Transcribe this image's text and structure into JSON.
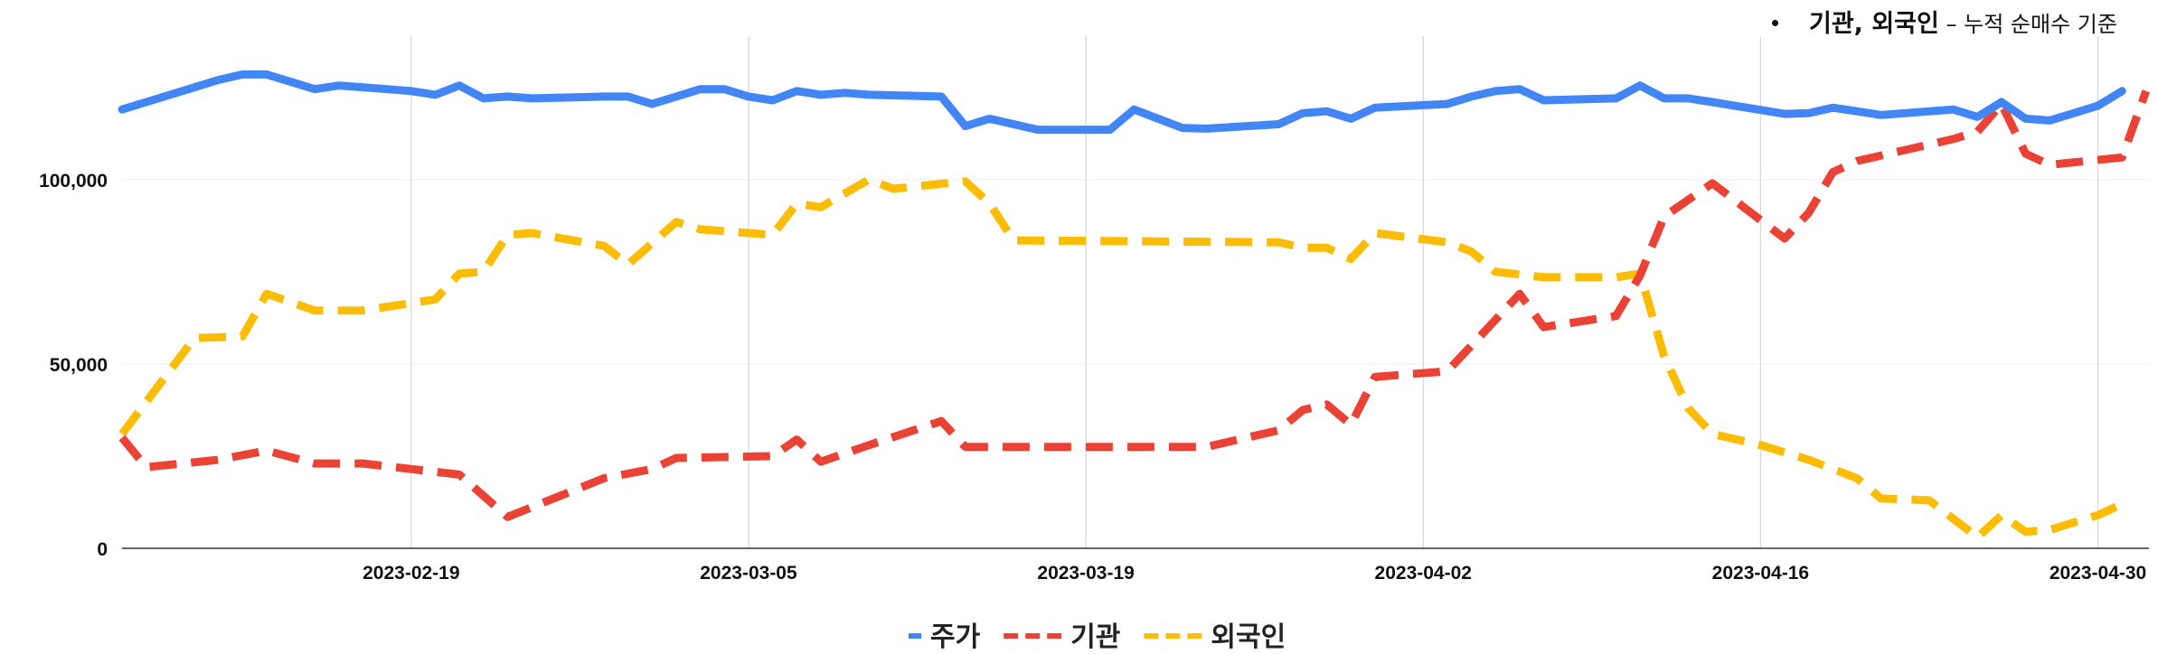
{
  "note": {
    "main": "기관, 외국인",
    "sub": " – 누적 순매수 기준"
  },
  "chart_data": {
    "type": "line",
    "y_ticks": [
      "0",
      "50,000",
      "100,000"
    ],
    "ylim": [
      0,
      125000
    ],
    "x_ticks": [
      "2023-02-19",
      "2023-03-05",
      "2023-03-19",
      "2023-04-02",
      "2023-04-16",
      "2023-04-30"
    ],
    "x_start": "2023-02-07",
    "x_end": "2023-05-01",
    "grid": "vertical at x ticks",
    "legend_position": "bottom",
    "series": [
      {
        "name": "주가",
        "color": "#4285F4",
        "dash": "solid",
        "points": [
          [
            "2023-02-07",
            119000
          ],
          [
            "2023-02-08",
            121000
          ],
          [
            "2023-02-10",
            125000
          ],
          [
            "2023-02-11",
            127000
          ],
          [
            "2023-02-12",
            128500
          ],
          [
            "2023-02-13",
            128500
          ],
          [
            "2023-02-14",
            126500
          ],
          [
            "2023-02-15",
            124500
          ],
          [
            "2023-02-16",
            125500
          ],
          [
            "2023-02-18",
            124500
          ],
          [
            "2023-02-19",
            124000
          ],
          [
            "2023-02-20",
            123000
          ],
          [
            "2023-02-21",
            125500
          ],
          [
            "2023-02-22",
            122000
          ],
          [
            "2023-02-23",
            122500
          ],
          [
            "2023-02-24",
            122000
          ],
          [
            "2023-02-27",
            122500
          ],
          [
            "2023-02-28",
            122500
          ],
          [
            "2023-03-01",
            120500
          ],
          [
            "2023-03-03",
            124500
          ],
          [
            "2023-03-04",
            124500
          ],
          [
            "2023-03-05",
            122500
          ],
          [
            "2023-03-06",
            121500
          ],
          [
            "2023-03-07",
            124000
          ],
          [
            "2023-03-08",
            123000
          ],
          [
            "2023-03-09",
            123500
          ],
          [
            "2023-03-10",
            123000
          ],
          [
            "2023-03-13",
            122500
          ],
          [
            "2023-03-14",
            114500
          ],
          [
            "2023-03-15",
            116500
          ],
          [
            "2023-03-16",
            115000
          ],
          [
            "2023-03-17",
            113500
          ],
          [
            "2023-03-20",
            113500
          ],
          [
            "2023-03-21",
            119000
          ],
          [
            "2023-03-23",
            114000
          ],
          [
            "2023-03-24",
            113800
          ],
          [
            "2023-03-27",
            115000
          ],
          [
            "2023-03-28",
            118000
          ],
          [
            "2023-03-29",
            118500
          ],
          [
            "2023-03-30",
            116500
          ],
          [
            "2023-03-31",
            119500
          ],
          [
            "2023-04-03",
            120500
          ],
          [
            "2023-04-04",
            122500
          ],
          [
            "2023-04-05",
            124000
          ],
          [
            "2023-04-06",
            124500
          ],
          [
            "2023-04-07",
            121500
          ],
          [
            "2023-04-10",
            122000
          ],
          [
            "2023-04-11",
            125500
          ],
          [
            "2023-04-12",
            122000
          ],
          [
            "2023-04-13",
            122000
          ],
          [
            "2023-04-14",
            121000
          ],
          [
            "2023-04-17",
            117800
          ],
          [
            "2023-04-18",
            118000
          ],
          [
            "2023-04-19",
            119500
          ],
          [
            "2023-04-20",
            118500
          ],
          [
            "2023-04-21",
            117500
          ],
          [
            "2023-04-24",
            119000
          ],
          [
            "2023-04-25",
            117000
          ],
          [
            "2023-04-26",
            121000
          ],
          [
            "2023-04-27",
            116500
          ],
          [
            "2023-04-28",
            116000
          ],
          [
            "2023-04-30",
            120000
          ],
          [
            "2023-05-01",
            124000
          ]
        ]
      },
      {
        "name": "기관",
        "color": "#EA4335",
        "dash": "dashed",
        "points": [
          [
            "2023-02-07",
            30000
          ],
          [
            "2023-02-08",
            22000
          ],
          [
            "2023-02-11",
            24000
          ],
          [
            "2023-02-13",
            26500
          ],
          [
            "2023-02-15",
            23000
          ],
          [
            "2023-02-17",
            23000
          ],
          [
            "2023-02-21",
            20000
          ],
          [
            "2023-02-23",
            8500
          ],
          [
            "2023-02-27",
            19000
          ],
          [
            "2023-03-01",
            21500
          ],
          [
            "2023-03-02",
            24500
          ],
          [
            "2023-03-06",
            25000
          ],
          [
            "2023-03-07",
            29500
          ],
          [
            "2023-03-08",
            23500
          ],
          [
            "2023-03-10",
            28000
          ],
          [
            "2023-03-13",
            34500
          ],
          [
            "2023-03-14",
            27500
          ],
          [
            "2023-03-20",
            27500
          ],
          [
            "2023-03-24",
            27500
          ],
          [
            "2023-03-27",
            32000
          ],
          [
            "2023-03-28",
            37500
          ],
          [
            "2023-03-29",
            39000
          ],
          [
            "2023-03-30",
            33500
          ],
          [
            "2023-03-31",
            46500
          ],
          [
            "2023-04-03",
            48000
          ],
          [
            "2023-04-04",
            55000
          ],
          [
            "2023-04-06",
            69000
          ],
          [
            "2023-04-07",
            60000
          ],
          [
            "2023-04-10",
            63000
          ],
          [
            "2023-04-11",
            74000
          ],
          [
            "2023-04-12",
            90000
          ],
          [
            "2023-04-14",
            99000
          ],
          [
            "2023-04-17",
            84000
          ],
          [
            "2023-04-18",
            91000
          ],
          [
            "2023-04-19",
            102000
          ],
          [
            "2023-04-20",
            105000
          ],
          [
            "2023-04-24",
            111000
          ],
          [
            "2023-04-25",
            113000
          ],
          [
            "2023-04-26",
            120500
          ],
          [
            "2023-04-27",
            107000
          ],
          [
            "2023-04-28",
            104000
          ],
          [
            "2023-05-01",
            106000
          ],
          [
            "2023-05-02",
            124000
          ]
        ]
      },
      {
        "name": "외국인",
        "color": "#FBBC04",
        "dash": "dashed",
        "points": [
          [
            "2023-02-07",
            31000
          ],
          [
            "2023-02-10",
            57000
          ],
          [
            "2023-02-12",
            57500
          ],
          [
            "2023-02-13",
            69000
          ],
          [
            "2023-02-15",
            64500
          ],
          [
            "2023-02-17",
            64500
          ],
          [
            "2023-02-20",
            67500
          ],
          [
            "2023-02-21",
            74500
          ],
          [
            "2023-02-22",
            75000
          ],
          [
            "2023-02-23",
            85000
          ],
          [
            "2023-02-24",
            85500
          ],
          [
            "2023-02-27",
            82000
          ],
          [
            "2023-02-28",
            77000
          ],
          [
            "2023-03-02",
            88500
          ],
          [
            "2023-03-03",
            86500
          ],
          [
            "2023-03-06",
            85000
          ],
          [
            "2023-03-07",
            93500
          ],
          [
            "2023-03-08",
            92500
          ],
          [
            "2023-03-10",
            100000
          ],
          [
            "2023-03-11",
            97500
          ],
          [
            "2023-03-14",
            99500
          ],
          [
            "2023-03-15",
            93500
          ],
          [
            "2023-03-16",
            83500
          ],
          [
            "2023-03-27",
            83000
          ],
          [
            "2023-03-28",
            81500
          ],
          [
            "2023-03-29",
            81500
          ],
          [
            "2023-03-30",
            78500
          ],
          [
            "2023-03-31",
            85500
          ],
          [
            "2023-04-03",
            83000
          ],
          [
            "2023-04-04",
            80500
          ],
          [
            "2023-04-05",
            75000
          ],
          [
            "2023-04-07",
            73500
          ],
          [
            "2023-04-10",
            73500
          ],
          [
            "2023-04-11",
            74500
          ],
          [
            "2023-04-12",
            52000
          ],
          [
            "2023-04-13",
            38000
          ],
          [
            "2023-04-14",
            31000
          ],
          [
            "2023-04-16",
            28000
          ],
          [
            "2023-04-18",
            24000
          ],
          [
            "2023-04-20",
            19000
          ],
          [
            "2023-04-21",
            13500
          ],
          [
            "2023-04-23",
            13000
          ],
          [
            "2023-04-25",
            3000
          ],
          [
            "2023-04-26",
            9000
          ],
          [
            "2023-04-27",
            4500
          ],
          [
            "2023-04-28",
            5000
          ],
          [
            "2023-04-30",
            9000
          ],
          [
            "2023-05-01",
            12000
          ]
        ]
      }
    ]
  }
}
